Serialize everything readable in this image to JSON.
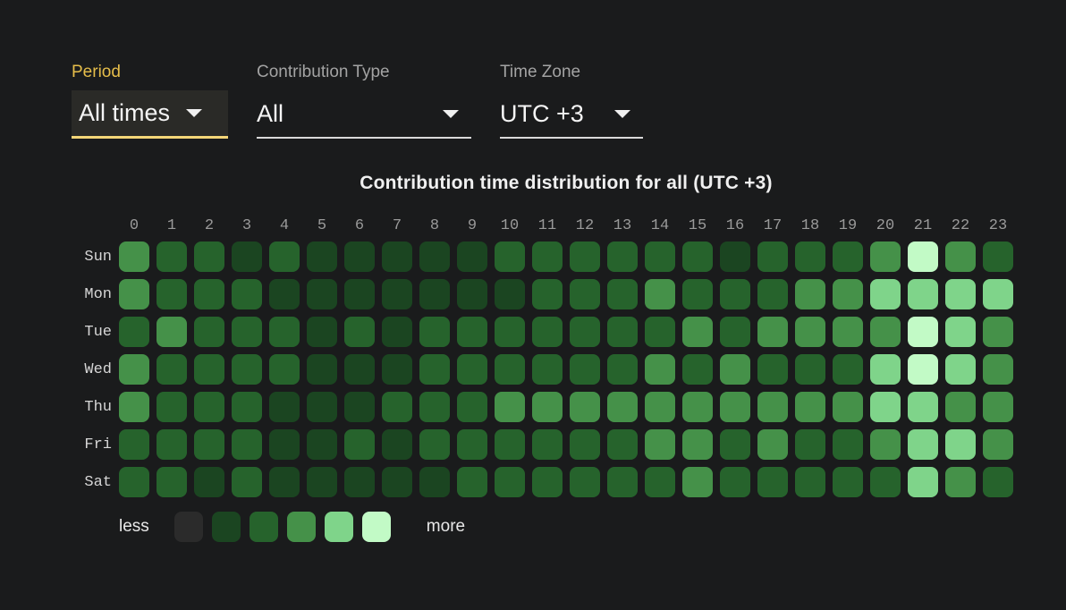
{
  "filters": {
    "period": {
      "label": "Period",
      "value": "All times"
    },
    "contribution_type": {
      "label": "Contribution Type",
      "value": "All"
    },
    "time_zone": {
      "label": "Time Zone",
      "value": "UTC +3"
    }
  },
  "title": "Contribution time distribution for all (UTC +3)",
  "chart_data": {
    "type": "heatmap",
    "title": "Contribution time distribution for all (UTC +3)",
    "x_labels": [
      "0",
      "1",
      "2",
      "3",
      "4",
      "5",
      "6",
      "7",
      "8",
      "9",
      "10",
      "11",
      "12",
      "13",
      "14",
      "15",
      "16",
      "17",
      "18",
      "19",
      "20",
      "21",
      "22",
      "23"
    ],
    "y_labels": [
      "Sun",
      "Mon",
      "Tue",
      "Wed",
      "Thu",
      "Fri",
      "Sat"
    ],
    "value_scale": "intensity level 0 (less) to 5 (more), read from legend color buckets",
    "values": [
      [
        3,
        2,
        2,
        1,
        2,
        1,
        1,
        1,
        1,
        1,
        2,
        2,
        2,
        2,
        2,
        2,
        1,
        2,
        2,
        2,
        3,
        5,
        3,
        2
      ],
      [
        3,
        2,
        2,
        2,
        1,
        1,
        1,
        1,
        1,
        1,
        1,
        2,
        2,
        2,
        3,
        2,
        2,
        2,
        3,
        3,
        4,
        4,
        4,
        4
      ],
      [
        2,
        3,
        2,
        2,
        2,
        1,
        2,
        1,
        2,
        2,
        2,
        2,
        2,
        2,
        2,
        3,
        2,
        3,
        3,
        3,
        3,
        5,
        4,
        3
      ],
      [
        3,
        2,
        2,
        2,
        2,
        1,
        1,
        1,
        2,
        2,
        2,
        2,
        2,
        2,
        3,
        2,
        3,
        2,
        2,
        2,
        4,
        5,
        4,
        3
      ],
      [
        3,
        2,
        2,
        2,
        1,
        1,
        1,
        2,
        2,
        2,
        3,
        3,
        3,
        3,
        3,
        3,
        3,
        3,
        3,
        3,
        4,
        4,
        3,
        3
      ],
      [
        2,
        2,
        2,
        2,
        1,
        1,
        2,
        1,
        2,
        2,
        2,
        2,
        2,
        2,
        3,
        3,
        2,
        3,
        2,
        2,
        3,
        4,
        4,
        3
      ],
      [
        2,
        2,
        1,
        2,
        1,
        1,
        1,
        1,
        1,
        2,
        2,
        2,
        2,
        2,
        2,
        3,
        2,
        2,
        2,
        2,
        2,
        4,
        3,
        2
      ]
    ],
    "level_colors": [
      "#2b2b2b",
      "#1b4521",
      "#26632c",
      "#459149",
      "#7fd48a",
      "#c2fac6"
    ],
    "legend": {
      "less_label": "less",
      "more_label": "more",
      "position": "bottom-left"
    },
    "grid": "off"
  },
  "colors": {
    "background": "#1a1b1c",
    "accent_yellow": "#e5bd4a",
    "accent_yellow_underline": "#f4d678",
    "select_background": "#2a2a27",
    "text_primary": "#f5f5f5",
    "text_secondary": "#a3a3a3"
  }
}
